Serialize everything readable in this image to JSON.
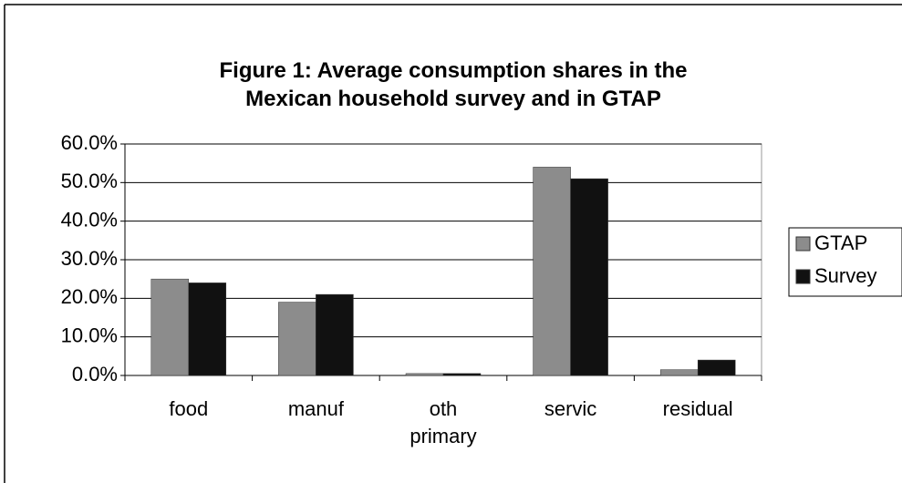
{
  "chart_data": {
    "type": "bar",
    "title": "Figure 1: Average consumption shares in the Mexican household survey and in GTAP",
    "categories": [
      "food",
      "manuf",
      "oth primary",
      "servic",
      "residual"
    ],
    "series": [
      {
        "name": "GTAP",
        "color": "#8c8c8c",
        "values": [
          25,
          19,
          0.5,
          54,
          1.5
        ]
      },
      {
        "name": "Survey",
        "color": "#111111",
        "values": [
          24,
          21,
          0.5,
          51,
          4
        ]
      }
    ],
    "ylim": [
      0,
      60
    ],
    "yticks": [
      {
        "value": 0,
        "label": "0.0%"
      },
      {
        "value": 10,
        "label": "10.0%"
      },
      {
        "value": 20,
        "label": "20.0%"
      },
      {
        "value": 30,
        "label": "30.0%"
      },
      {
        "value": 40,
        "label": "40.0%"
      },
      {
        "value": 50,
        "label": "50.0%"
      },
      {
        "value": 60,
        "label": "60.0%"
      }
    ],
    "grid": true,
    "legend": "right"
  }
}
